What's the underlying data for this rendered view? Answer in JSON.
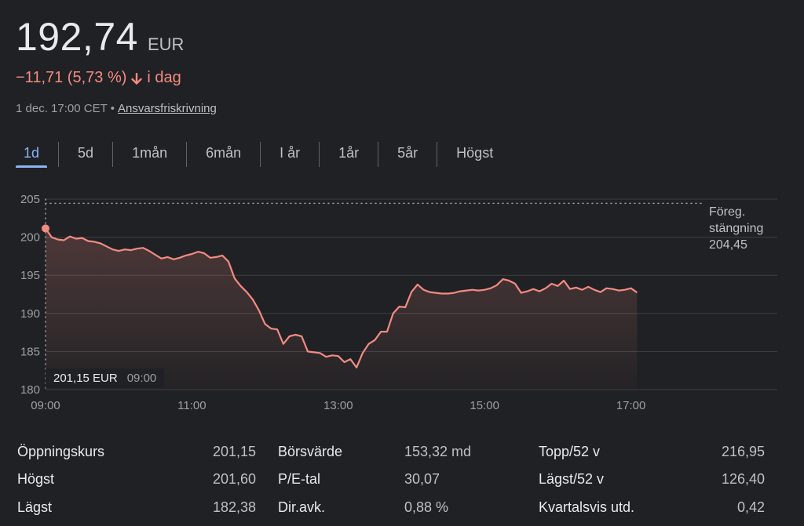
{
  "quote": {
    "price": "192,74",
    "currency": "EUR",
    "change": "−11,71 (5,73 %)",
    "change_suffix": "i dag",
    "timestamp": "1 dec. 17:00 CET",
    "separator": "•",
    "disclaimer": "Ansvarsfriskrivning",
    "colors": {
      "negative": "#f28b82",
      "accent": "#8ab4f8",
      "background": "#202124"
    }
  },
  "tabs": [
    {
      "label": "1d",
      "active": true
    },
    {
      "label": "5d"
    },
    {
      "label": "1mån"
    },
    {
      "label": "6mån"
    },
    {
      "label": "I år"
    },
    {
      "label": "1år"
    },
    {
      "label": "5år"
    },
    {
      "label": "Högst"
    }
  ],
  "chart_data": {
    "type": "area",
    "x_ticks": [
      "09:00",
      "11:00",
      "13:00",
      "15:00",
      "17:00"
    ],
    "y_ticks": [
      180,
      185,
      190,
      195,
      200,
      205
    ],
    "ylim": [
      180,
      205
    ],
    "x_range": [
      "09:00",
      "19:00"
    ],
    "grid": true,
    "line_color": "#f28b82",
    "series": [
      {
        "x": [
          "09:00",
          "09:05",
          "09:10",
          "09:15",
          "09:20",
          "09:25",
          "09:30",
          "09:35",
          "09:40",
          "09:45",
          "09:50",
          "09:55",
          "10:00",
          "10:05",
          "10:10",
          "10:15",
          "10:20",
          "10:25",
          "10:30",
          "10:35",
          "10:40",
          "10:45",
          "10:50",
          "10:55",
          "11:00",
          "11:05",
          "11:10",
          "11:15",
          "11:20",
          "11:25",
          "11:30",
          "11:35",
          "11:40",
          "11:45",
          "11:50",
          "11:55",
          "12:00",
          "12:05",
          "12:10",
          "12:15",
          "12:20",
          "12:25",
          "12:30",
          "12:35",
          "12:40",
          "12:45",
          "12:50",
          "12:55",
          "13:00",
          "13:05",
          "13:10",
          "13:15",
          "13:20",
          "13:25",
          "13:30",
          "13:35",
          "13:40",
          "13:45",
          "13:50",
          "13:55",
          "14:00",
          "14:05",
          "14:10",
          "14:15",
          "14:20",
          "14:25",
          "14:30",
          "14:35",
          "14:40",
          "14:45",
          "14:50",
          "14:55",
          "15:00",
          "15:05",
          "15:10",
          "15:15",
          "15:20",
          "15:25",
          "15:30",
          "15:35",
          "15:40",
          "15:45",
          "15:50",
          "15:55",
          "16:00",
          "16:05",
          "16:10",
          "16:15",
          "16:20",
          "16:25",
          "16:30",
          "16:35",
          "16:40",
          "16:45",
          "16:50",
          "16:55",
          "17:00",
          "17:05"
        ],
        "y": [
          201.15,
          200.0,
          199.7,
          199.6,
          200.1,
          199.8,
          199.9,
          199.5,
          199.4,
          199.2,
          198.8,
          198.4,
          198.2,
          198.4,
          198.3,
          198.5,
          198.6,
          198.2,
          197.7,
          197.2,
          197.4,
          197.1,
          197.3,
          197.6,
          197.8,
          198.1,
          197.9,
          197.3,
          197.4,
          197.6,
          196.8,
          194.6,
          193.6,
          192.8,
          191.8,
          190.4,
          188.6,
          188.0,
          187.9,
          186.0,
          187.0,
          187.2,
          187.0,
          185.0,
          184.9,
          184.8,
          184.3,
          184.5,
          184.4,
          183.6,
          184.0,
          182.9,
          184.8,
          186.0,
          186.5,
          187.6,
          187.6,
          190.0,
          190.9,
          190.8,
          192.8,
          193.8,
          193.1,
          192.8,
          192.7,
          192.6,
          192.6,
          192.7,
          192.9,
          193.0,
          193.1,
          193.0,
          193.1,
          193.3,
          193.7,
          194.5,
          194.3,
          193.9,
          192.7,
          192.9,
          193.2,
          192.9,
          193.3,
          193.9,
          193.6,
          194.3,
          193.2,
          193.4,
          193.1,
          193.5,
          193.1,
          192.8,
          193.3,
          193.2,
          193.0,
          193.1,
          193.3,
          192.74
        ]
      }
    ],
    "previous_close": {
      "label_line1": "Föreg.",
      "label_line2": "stängning",
      "value": "204,45",
      "y": 204.45
    },
    "tooltip": {
      "price": "201,15 EUR",
      "time": "09:00"
    }
  },
  "stats": [
    {
      "label": "Öppningskurs",
      "value": "201,15"
    },
    {
      "label": "Högst",
      "value": "201,60"
    },
    {
      "label": "Lägst",
      "value": "182,38"
    },
    {
      "label": "Börsvärde",
      "value": "153,32 md"
    },
    {
      "label": "P/E-tal",
      "value": "30,07"
    },
    {
      "label": "Dir.avk.",
      "value": "0,88 %"
    },
    {
      "label": "Topp/52 v",
      "value": "216,95"
    },
    {
      "label": "Lägst/52 v",
      "value": "126,40"
    },
    {
      "label": "Kvartalsvis utd.",
      "value": "0,42"
    }
  ]
}
